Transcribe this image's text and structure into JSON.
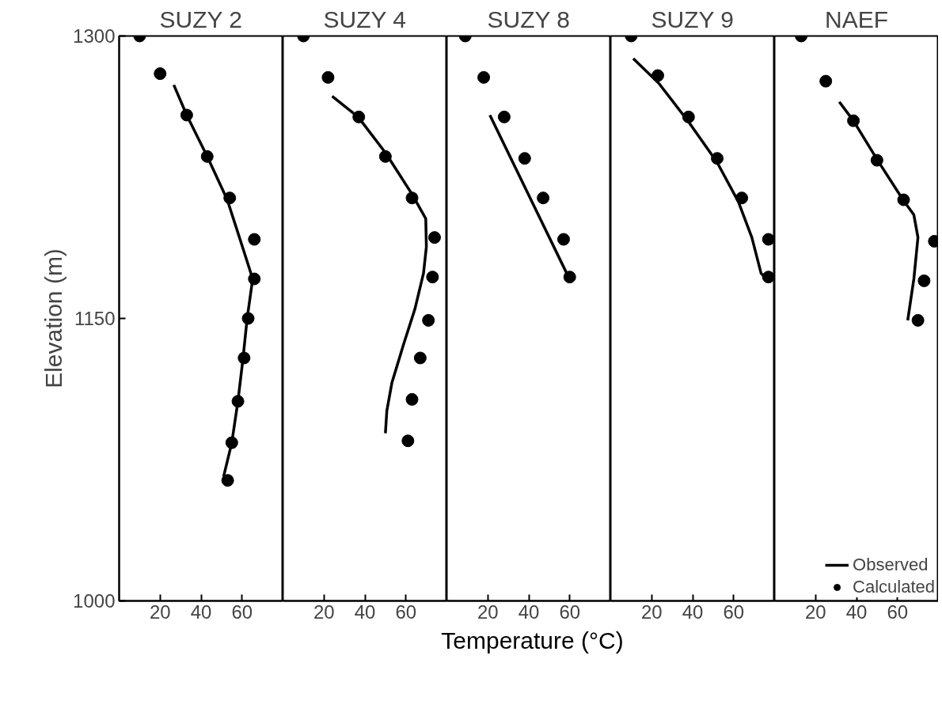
{
  "chart_data": [
    {
      "type": "line",
      "title": "SUZY 2",
      "ylabel": "Elevation (m)",
      "xlim": [
        0,
        80
      ],
      "xticks": [
        20,
        40,
        60
      ],
      "ylim": [
        1000,
        1300
      ],
      "yticks": [
        1000,
        1150,
        1300
      ],
      "series": [
        {
          "color": "#000000",
          "line_style": "solid",
          "x": [
            26.7,
            33,
            43,
            52.8,
            60.8,
            65.2,
            62.5,
            60.5,
            58,
            55,
            51
          ],
          "values": [
            1274,
            1258,
            1236,
            1213,
            1186,
            1171,
            1150,
            1129,
            1106,
            1084,
            1066
          ]
        },
        {
          "type": "scatter",
          "color": "#000000",
          "marker": "circle",
          "x": [
            10,
            20,
            33,
            43,
            54,
            66,
            66,
            63,
            61,
            58,
            55,
            53
          ],
          "values": [
            1300,
            1280,
            1258,
            1236,
            1214,
            1192,
            1171,
            1150,
            1129,
            1106,
            1084,
            1064
          ]
        }
      ]
    },
    {
      "type": "line",
      "title": "SUZY 4",
      "xlim": [
        0,
        80
      ],
      "xticks": [
        20,
        40,
        60
      ],
      "ylim": [
        1000,
        1300
      ],
      "yticks": [
        1000,
        1150,
        1300
      ],
      "tick_labels": "x",
      "series": [
        {
          "color": "#000000",
          "line_style": "solid",
          "x": [
            24,
            36.7,
            50,
            63,
            69.7,
            70,
            68.6,
            64.4,
            58.8,
            53.2,
            50.7,
            50
          ],
          "values": [
            1268,
            1257,
            1238,
            1216,
            1203,
            1188,
            1174,
            1155,
            1136,
            1116,
            1101,
            1089
          ]
        },
        {
          "type": "scatter",
          "color": "#000000",
          "marker": "circle",
          "x": [
            10,
            22,
            37,
            50,
            63,
            74,
            73,
            71,
            67,
            63,
            61
          ],
          "values": [
            1300,
            1278,
            1257,
            1236,
            1214,
            1193,
            1172,
            1149,
            1129,
            1107,
            1085
          ]
        }
      ]
    },
    {
      "type": "line",
      "title": "SUZY 8",
      "xlabel": "Temperature (°C)",
      "xlim": [
        0,
        80
      ],
      "xticks": [
        20,
        40,
        60
      ],
      "ylim": [
        1000,
        1300
      ],
      "yticks": [
        1000,
        1150,
        1300
      ],
      "tick_labels": "x",
      "series": [
        {
          "color": "#000000",
          "line_style": "solid",
          "x": [
            21,
            58.5
          ],
          "values": [
            1258,
            1174
          ]
        },
        {
          "type": "scatter",
          "color": "#000000",
          "marker": "circle",
          "x": [
            9,
            18,
            28,
            38,
            47,
            57,
            60
          ],
          "values": [
            1300,
            1278,
            1257,
            1235,
            1214,
            1192,
            1172
          ]
        }
      ]
    },
    {
      "type": "line",
      "title": "SUZY 9",
      "xlim": [
        0,
        80
      ],
      "xticks": [
        20,
        40,
        60
      ],
      "ylim": [
        1000,
        1300
      ],
      "yticks": [
        1000,
        1150,
        1300
      ],
      "tick_labels": "x",
      "series": [
        {
          "color": "#000000",
          "line_style": "solid",
          "x": [
            11,
            23.4,
            37.6,
            51.9,
            62.3,
            68.9,
            73.4,
            76.7
          ],
          "values": [
            1288,
            1275,
            1255,
            1233,
            1212,
            1193,
            1174,
            1170
          ]
        },
        {
          "type": "scatter",
          "color": "#000000",
          "marker": "circle",
          "x": [
            10,
            23,
            38,
            52,
            64,
            77,
            77
          ],
          "values": [
            1300,
            1279,
            1257,
            1235,
            1214,
            1192,
            1172
          ]
        }
      ]
    },
    {
      "type": "line",
      "title": "NAEF",
      "xlim": [
        0,
        80
      ],
      "xticks": [
        20,
        40,
        60
      ],
      "ylim": [
        1000,
        1300
      ],
      "yticks": [
        1000,
        1150,
        1300
      ],
      "tick_labels": "x",
      "legend": "bottom right",
      "series": [
        {
          "name": "Observed",
          "color": "#000000",
          "line_style": "solid",
          "x": [
            31.6,
            38.5,
            50.3,
            62.7,
            68,
            70,
            68,
            65
          ],
          "values": [
            1265,
            1255,
            1234,
            1213,
            1205,
            1193,
            1171,
            1149
          ]
        },
        {
          "type": "scatter",
          "name": "Calculated",
          "color": "#000000",
          "marker": "circle",
          "x": [
            13,
            25,
            38.5,
            50,
            63,
            78,
            73,
            70
          ],
          "values": [
            1300,
            1276,
            1255,
            1234,
            1213,
            1191,
            1170,
            1149
          ]
        }
      ]
    }
  ]
}
